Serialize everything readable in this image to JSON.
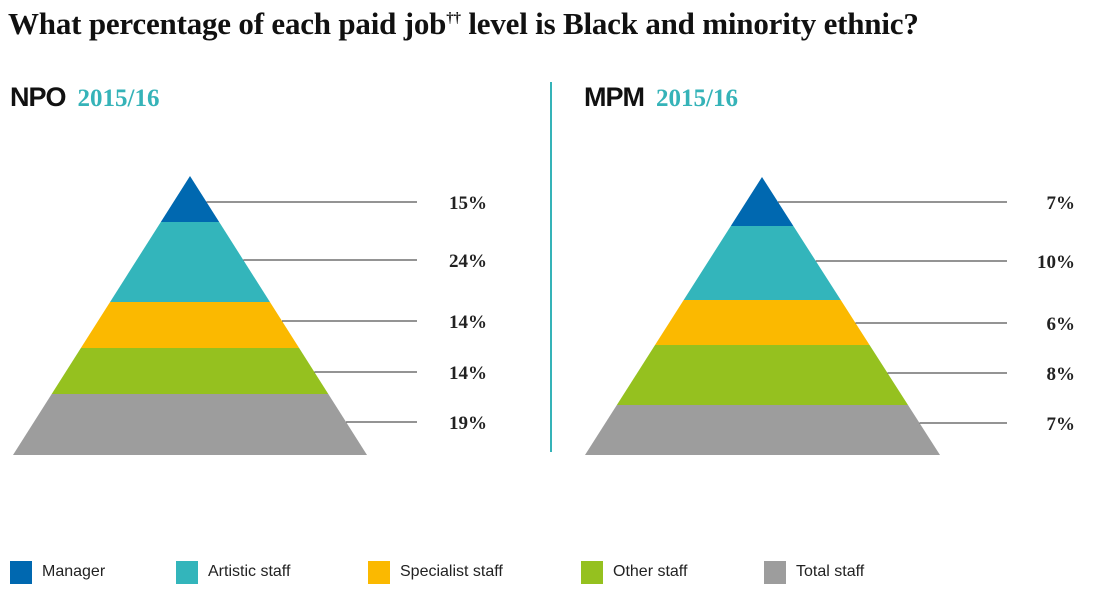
{
  "title": "What percentage of each paid job",
  "title_sup": "††",
  "title_end": " level is Black and minority ethnic?",
  "chart_data": [
    {
      "type": "pyramid",
      "org": "NPO",
      "period": "2015/16",
      "categories": [
        "Manager",
        "Artistic staff",
        "Specialist staff",
        "Other staff",
        "Total staff"
      ],
      "values": [
        15,
        24,
        14,
        14,
        19
      ],
      "labels": [
        "15%",
        "24%",
        "14%",
        "14%",
        "19%"
      ]
    },
    {
      "type": "pyramid",
      "org": "MPM",
      "period": "2015/16",
      "categories": [
        "Manager",
        "Artistic staff",
        "Specialist staff",
        "Other staff",
        "Total staff"
      ],
      "values": [
        7,
        10,
        6,
        8,
        7
      ],
      "labels": [
        "7%",
        "10%",
        "6%",
        "8%",
        "7%"
      ]
    }
  ],
  "legend": [
    {
      "label": "Manager",
      "color": "#0068b0"
    },
    {
      "label": "Artistic staff",
      "color": "#33b5bb"
    },
    {
      "label": "Specialist staff",
      "color": "#fbb900"
    },
    {
      "label": "Other staff",
      "color": "#95c11f"
    },
    {
      "label": "Total staff",
      "color": "#9d9d9d"
    }
  ],
  "colors": {
    "accent": "#35b3b8",
    "leader_line": "#555555"
  }
}
